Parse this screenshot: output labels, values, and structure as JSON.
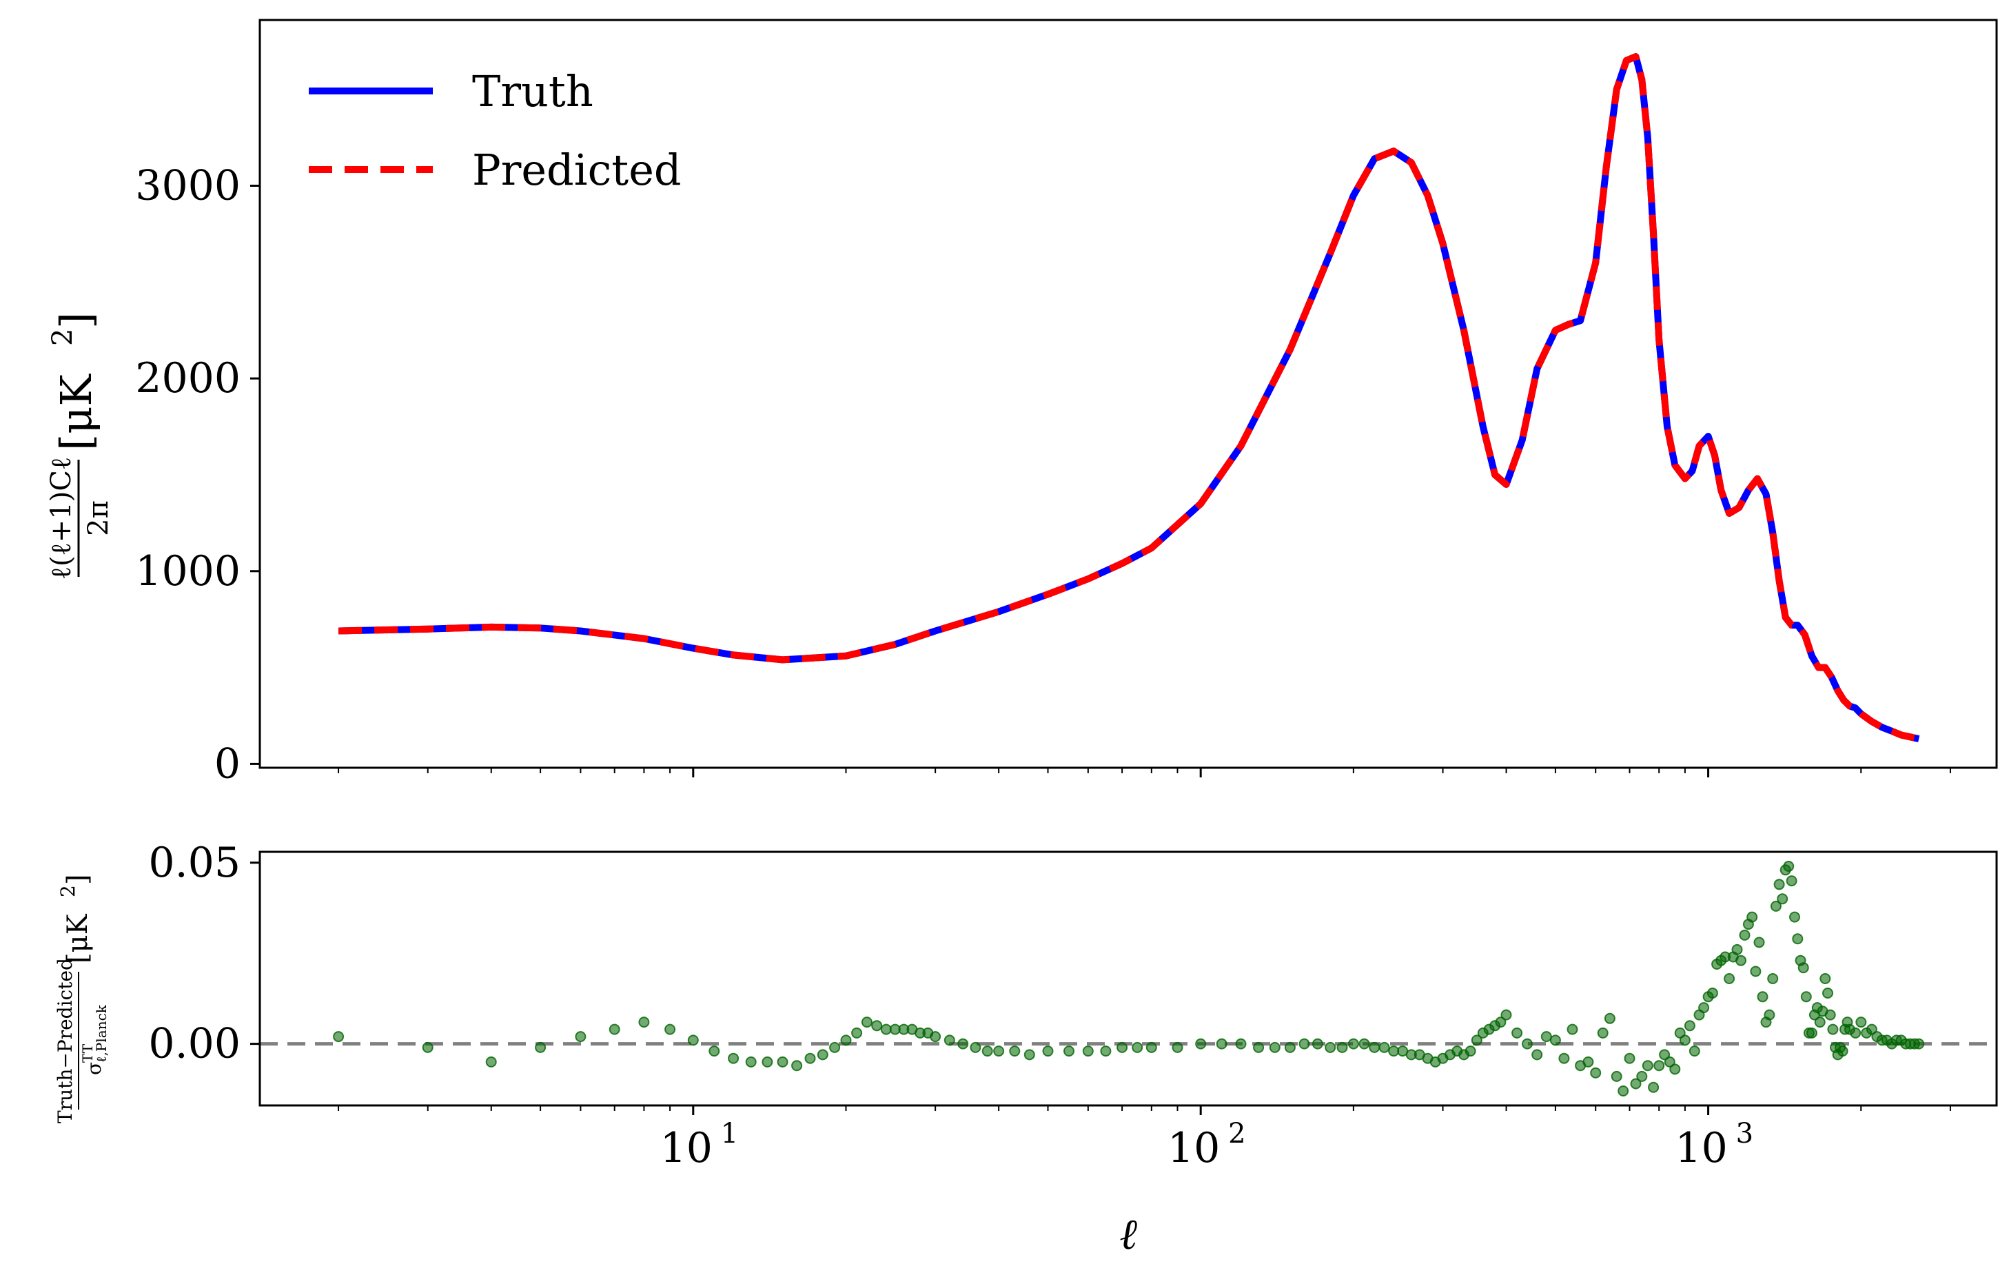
{
  "chart_data": [
    {
      "type": "line",
      "title": "",
      "xlabel": "ℓ",
      "ylabel": "ℓ(ℓ+1)Cℓ / 2π [μK²]",
      "ylabel_parts": {
        "num": "ℓ(ℓ+1)Cℓ",
        "den": "2π",
        "unit": "[μK",
        "unit_exp": "2",
        "unit_close": "]"
      },
      "x_scale": "log",
      "xlim": [
        1.4,
        3700
      ],
      "ylim": [
        -20,
        3860
      ],
      "y_ticks": [
        0,
        1000,
        2000,
        3000
      ],
      "x_ticks": [
        10,
        100,
        1000
      ],
      "x_tick_labels": [
        {
          "base": "10",
          "exp": "1"
        },
        {
          "base": "10",
          "exp": "2"
        },
        {
          "base": "10",
          "exp": "3"
        }
      ],
      "grid": false,
      "legend_position": "top-left",
      "series": [
        {
          "name": "Truth",
          "color": "#0000ff",
          "style": "solid",
          "x": [
            2,
            3,
            4,
            5,
            6,
            8,
            10,
            12,
            15,
            20,
            25,
            30,
            40,
            50,
            60,
            70,
            80,
            100,
            120,
            150,
            180,
            200,
            220,
            240,
            260,
            280,
            300,
            330,
            360,
            380,
            400,
            430,
            460,
            500,
            530,
            560,
            600,
            630,
            660,
            690,
            720,
            740,
            760,
            780,
            800,
            830,
            860,
            900,
            930,
            960,
            1000,
            1030,
            1060,
            1100,
            1150,
            1200,
            1250,
            1300,
            1340,
            1380,
            1420,
            1460,
            1500,
            1550,
            1600,
            1650,
            1700,
            1750,
            1800,
            1850,
            1900,
            1950,
            2000,
            2100,
            2200,
            2300,
            2400,
            2500,
            2600
          ],
          "y": [
            690,
            700,
            710,
            705,
            690,
            650,
            600,
            565,
            540,
            560,
            620,
            690,
            790,
            880,
            960,
            1040,
            1120,
            1350,
            1650,
            2150,
            2650,
            2950,
            3140,
            3180,
            3120,
            2950,
            2700,
            2250,
            1750,
            1500,
            1450,
            1680,
            2050,
            2250,
            2280,
            2300,
            2600,
            3100,
            3500,
            3650,
            3670,
            3550,
            3250,
            2750,
            2200,
            1750,
            1550,
            1480,
            1520,
            1650,
            1700,
            1600,
            1420,
            1300,
            1330,
            1420,
            1480,
            1400,
            1200,
            950,
            760,
            720,
            720,
            670,
            560,
            500,
            500,
            450,
            380,
            330,
            300,
            290,
            260,
            220,
            190,
            170,
            150,
            140,
            130
          ]
        },
        {
          "name": "Predicted",
          "color": "#ff0000",
          "style": "dashed",
          "x": [
            2,
            3,
            4,
            5,
            6,
            8,
            10,
            12,
            15,
            20,
            25,
            30,
            40,
            50,
            60,
            70,
            80,
            100,
            120,
            150,
            180,
            200,
            220,
            240,
            260,
            280,
            300,
            330,
            360,
            380,
            400,
            430,
            460,
            500,
            530,
            560,
            600,
            630,
            660,
            690,
            720,
            740,
            760,
            780,
            800,
            830,
            860,
            900,
            930,
            960,
            1000,
            1030,
            1060,
            1100,
            1150,
            1200,
            1250,
            1300,
            1340,
            1380,
            1420,
            1460,
            1500,
            1550,
            1600,
            1650,
            1700,
            1750,
            1800,
            1850,
            1900,
            1950,
            2000,
            2100,
            2200,
            2300,
            2400,
            2500,
            2600
          ],
          "y": [
            690,
            700,
            710,
            705,
            690,
            650,
            600,
            565,
            540,
            560,
            620,
            690,
            790,
            880,
            960,
            1040,
            1120,
            1350,
            1650,
            2150,
            2650,
            2950,
            3140,
            3180,
            3120,
            2950,
            2700,
            2250,
            1750,
            1500,
            1450,
            1680,
            2050,
            2250,
            2280,
            2300,
            2600,
            3100,
            3500,
            3650,
            3670,
            3550,
            3250,
            2750,
            2200,
            1750,
            1550,
            1480,
            1520,
            1650,
            1700,
            1600,
            1420,
            1300,
            1330,
            1420,
            1480,
            1400,
            1200,
            950,
            760,
            720,
            720,
            670,
            560,
            500,
            500,
            450,
            380,
            330,
            300,
            290,
            260,
            220,
            190,
            170,
            150,
            140,
            130
          ]
        }
      ]
    },
    {
      "type": "scatter",
      "title": "",
      "xlabel": "ℓ",
      "ylabel": "(Truth−Predicted) / σ_ℓ,Planck^TT [μK²]",
      "ylabel_parts": {
        "num": "Truth−Predicted",
        "sigma": "σ",
        "sigma_sup": "TT",
        "sigma_sub": "ℓ,Planck",
        "unit": "[μK",
        "unit_exp": "2",
        "unit_close": "]"
      },
      "x_scale": "log",
      "xlim": [
        1.4,
        3700
      ],
      "ylim": [
        -0.017,
        0.053
      ],
      "y_ticks": [
        0.0,
        0.05
      ],
      "y_tick_labels": [
        "0.00",
        "0.05"
      ],
      "grid": false,
      "reference_line": {
        "y": 0,
        "color": "#808080",
        "style": "dashed"
      },
      "series": [
        {
          "name": "",
          "color": "#006400",
          "marker": "circle",
          "x": [
            2,
            3,
            4,
            5,
            6,
            7,
            8,
            9,
            10,
            11,
            12,
            13,
            14,
            15,
            16,
            17,
            18,
            19,
            20,
            21,
            22,
            23,
            24,
            25,
            26,
            27,
            28,
            29,
            30,
            32,
            34,
            36,
            38,
            40,
            43,
            46,
            50,
            55,
            60,
            65,
            70,
            75,
            80,
            90,
            100,
            110,
            120,
            130,
            140,
            150,
            160,
            170,
            180,
            190,
            200,
            210,
            220,
            230,
            240,
            250,
            260,
            270,
            280,
            290,
            300,
            310,
            320,
            330,
            340,
            350,
            360,
            370,
            380,
            390,
            400,
            420,
            440,
            460,
            480,
            500,
            520,
            540,
            560,
            580,
            600,
            620,
            640,
            660,
            680,
            700,
            720,
            740,
            760,
            780,
            800,
            820,
            840,
            860,
            880,
            900,
            920,
            940,
            960,
            980,
            1000,
            1020,
            1040,
            1060,
            1080,
            1100,
            1120,
            1140,
            1160,
            1180,
            1200,
            1220,
            1240,
            1260,
            1280,
            1300,
            1320,
            1340,
            1360,
            1380,
            1400,
            1420,
            1440,
            1460,
            1480,
            1500,
            1520,
            1540,
            1560,
            1580,
            1600,
            1620,
            1640,
            1660,
            1680,
            1700,
            1720,
            1740,
            1760,
            1780,
            1800,
            1820,
            1840,
            1860,
            1880,
            1900,
            1950,
            2000,
            2050,
            2100,
            2150,
            2200,
            2250,
            2300,
            2350,
            2400,
            2450,
            2500,
            2550,
            2600
          ],
          "y": [
            0.002,
            -0.001,
            -0.005,
            -0.001,
            0.002,
            0.004,
            0.006,
            0.004,
            0.001,
            -0.002,
            -0.004,
            -0.005,
            -0.005,
            -0.005,
            -0.006,
            -0.004,
            -0.003,
            -0.001,
            0.001,
            0.003,
            0.006,
            0.005,
            0.004,
            0.004,
            0.004,
            0.004,
            0.003,
            0.003,
            0.002,
            0.001,
            0.0,
            -0.001,
            -0.002,
            -0.002,
            -0.002,
            -0.003,
            -0.002,
            -0.002,
            -0.002,
            -0.002,
            -0.001,
            -0.001,
            -0.001,
            -0.001,
            0.0,
            0.0,
            0.0,
            -0.001,
            -0.001,
            -0.001,
            0.0,
            0.0,
            -0.001,
            -0.001,
            0.0,
            0.0,
            -0.001,
            -0.001,
            -0.002,
            -0.002,
            -0.003,
            -0.003,
            -0.004,
            -0.005,
            -0.004,
            -0.003,
            -0.002,
            -0.003,
            -0.002,
            0.001,
            0.003,
            0.004,
            0.005,
            0.006,
            0.008,
            0.003,
            0.0,
            -0.003,
            0.002,
            0.001,
            -0.004,
            0.004,
            -0.006,
            -0.005,
            -0.008,
            0.003,
            0.007,
            -0.009,
            -0.013,
            -0.004,
            -0.011,
            -0.009,
            -0.006,
            -0.012,
            -0.006,
            -0.003,
            -0.005,
            -0.007,
            0.003,
            0.001,
            0.005,
            -0.002,
            0.008,
            0.01,
            0.013,
            0.014,
            0.022,
            0.023,
            0.024,
            0.018,
            0.024,
            0.026,
            0.023,
            0.03,
            0.033,
            0.035,
            0.02,
            0.028,
            0.013,
            0.006,
            0.008,
            0.018,
            0.038,
            0.044,
            0.04,
            0.048,
            0.049,
            0.045,
            0.035,
            0.029,
            0.023,
            0.021,
            0.013,
            0.003,
            0.003,
            0.008,
            0.01,
            0.006,
            0.009,
            0.018,
            0.014,
            0.008,
            0.004,
            -0.001,
            -0.003,
            -0.001,
            -0.002,
            0.004,
            0.006,
            0.004,
            0.003,
            0.006,
            0.003,
            0.004,
            0.002,
            0.001,
            0.001,
            0.0,
            0.001,
            0.001,
            0.0,
            0.0,
            0.0,
            0.0
          ]
        }
      ]
    }
  ]
}
